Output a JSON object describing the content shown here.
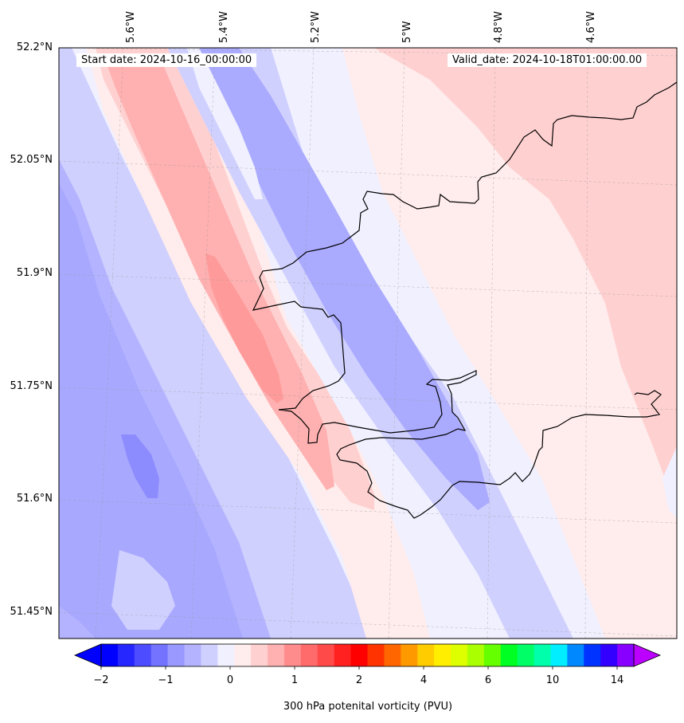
{
  "header": {
    "start_label": "Start date: 2024-10-16_00:00:00",
    "valid_label": "Valid_date: 2024-10-18T01:00:00.00"
  },
  "axes": {
    "lon_labels": [
      "5.6°W",
      "5.4°W",
      "5.2°W",
      "5°W",
      "4.8°W",
      "4.6°W"
    ],
    "lat_labels": [
      "52.2°N",
      "52.05°N",
      "51.9°N",
      "51.75°N",
      "51.6°N",
      "51.45°N"
    ]
  },
  "colorbar": {
    "title": "300 hPa potenital vorticity (PVU)",
    "tick_labels": [
      "−2",
      "−1",
      "0",
      "1",
      "2",
      "4",
      "6",
      "10",
      "14"
    ],
    "colors": [
      "#0000ff",
      "#2626ff",
      "#4d4dff",
      "#7373ff",
      "#9999ff",
      "#b3b3ff",
      "#d0d0ff",
      "#f0f0ff",
      "#ffecec",
      "#ffd0d0",
      "#ffb0b0",
      "#ff8c8c",
      "#ff6a6a",
      "#ff4a4a",
      "#ff2020",
      "#ff0000",
      "#ff3300",
      "#ff6600",
      "#ff9900",
      "#ffcc00",
      "#ffee00",
      "#ddff00",
      "#aaff00",
      "#66ff00",
      "#00ff22",
      "#00ff66",
      "#00ffaa",
      "#00eeff",
      "#0088ff",
      "#0033ff",
      "#3300ff",
      "#8800ff"
    ],
    "under_color": "#0000ff",
    "over_color": "#bb00ff"
  }
}
